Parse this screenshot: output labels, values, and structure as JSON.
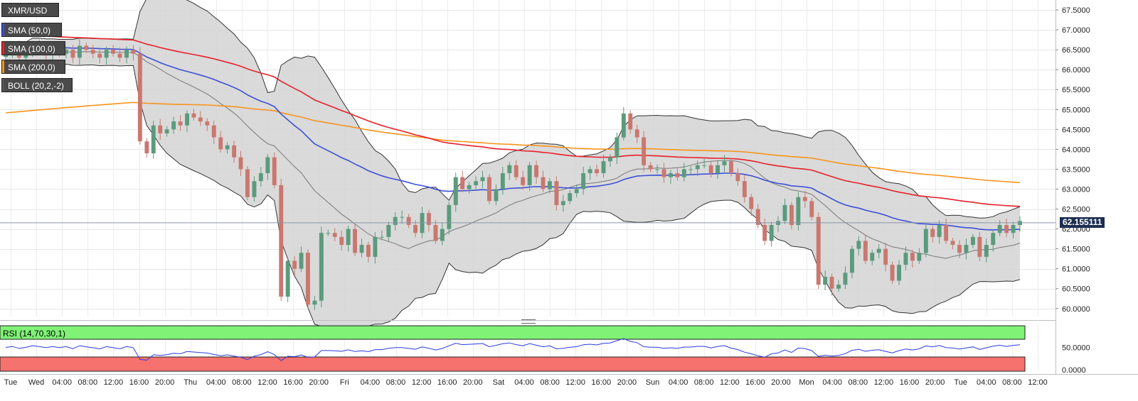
{
  "chart_data": {
    "type": "candlestick",
    "symbol": "XMR/USD",
    "current_price_label": "62.155111",
    "current_price": 62.155,
    "ylim": [
      59.8,
      67.75
    ],
    "y_ticks": [
      "67.5000",
      "67.0000",
      "66.5000",
      "66.0000",
      "65.5000",
      "65.0000",
      "64.5000",
      "64.0000",
      "63.5000",
      "63.0000",
      "62.5000",
      "62.0000",
      "61.5000",
      "61.0000",
      "60.5000",
      "60.0000"
    ],
    "x_ticks": [
      "Tue",
      "Wed",
      "04:00",
      "08:00",
      "12:00",
      "16:00",
      "20:00",
      "Thu",
      "04:00",
      "08:00",
      "12:00",
      "16:00",
      "20:00",
      "Fri",
      "04:00",
      "08:00",
      "12:00",
      "16:00",
      "20:00",
      "Sat",
      "04:00",
      "08:00",
      "12:00",
      "16:00",
      "20:00",
      "Sun",
      "04:00",
      "08:00",
      "12:00",
      "16:00",
      "20:00",
      "Mon",
      "04:00",
      "08:00",
      "12:00",
      "16:00",
      "20:00",
      "Tue",
      "04:00",
      "08:00",
      "12:00"
    ],
    "indicators": [
      {
        "name": "SMA (50,0)",
        "color": "#3b4fd8"
      },
      {
        "name": "SMA (100,0)",
        "color": "#e8202a"
      },
      {
        "name": "SMA (200,0)",
        "color": "#f7941d"
      },
      {
        "name": "BOLL (20,2,-2)",
        "color": "#555555"
      }
    ],
    "colors": {
      "up": "#5b9a7d",
      "down": "#c9786f",
      "band_fill": "#d4d4d4",
      "price_line": "#8a94a8"
    },
    "close": [
      66.4,
      66.5,
      66.3,
      66.4,
      66.6,
      66.5,
      66.4,
      66.5,
      66.4,
      66.5,
      66.3,
      66.6,
      66.5,
      66.4,
      66.3,
      66.5,
      66.4,
      66.3,
      66.5,
      66.4,
      64.2,
      63.9,
      64.6,
      64.4,
      64.5,
      64.7,
      64.6,
      64.9,
      64.8,
      64.7,
      64.6,
      64.3,
      64.0,
      64.1,
      63.8,
      63.5,
      62.8,
      63.2,
      63.4,
      63.8,
      63.1,
      60.3,
      61.2,
      61.0,
      61.4,
      60.1,
      60.2,
      61.9,
      61.9,
      61.8,
      61.6,
      62.0,
      61.4,
      61.6,
      61.3,
      61.8,
      61.8,
      62.1,
      62.3,
      62.3,
      62.1,
      61.9,
      62.4,
      62.1,
      61.7,
      62.0,
      62.6,
      63.3,
      63.0,
      63.1,
      63.2,
      63.3,
      62.7,
      63.0,
      63.4,
      63.6,
      63.3,
      63.1,
      63.6,
      63.3,
      63.0,
      63.2,
      62.6,
      62.7,
      62.9,
      63.0,
      63.4,
      63.5,
      63.4,
      63.7,
      63.8,
      64.3,
      64.9,
      64.5,
      64.3,
      63.6,
      63.5,
      63.5,
      63.3,
      63.4,
      63.3,
      63.5,
      63.5,
      63.6,
      63.6,
      63.4,
      63.6,
      63.7,
      63.4,
      63.2,
      62.8,
      62.5,
      62.1,
      61.7,
      62.1,
      62.2,
      62.6,
      62.1,
      62.8,
      62.7,
      62.3,
      60.6,
      60.8,
      60.5,
      60.6,
      60.9,
      61.5,
      61.7,
      61.2,
      61.4,
      61.5,
      61.1,
      60.7,
      61.1,
      61.4,
      61.2,
      61.4,
      62.0,
      61.8,
      62.1,
      61.7,
      61.6,
      61.4,
      61.6,
      61.8,
      61.3,
      61.6,
      61.9,
      62.1,
      61.9,
      62.1,
      62.2
    ]
  },
  "rsi": {
    "label": "RSI (14,70,30,1)",
    "ticks": [
      "50.0000",
      "0.0000"
    ],
    "overbought_color": "#80f276",
    "oversold_color": "#f5726f",
    "line_color": "#2a3be0"
  }
}
